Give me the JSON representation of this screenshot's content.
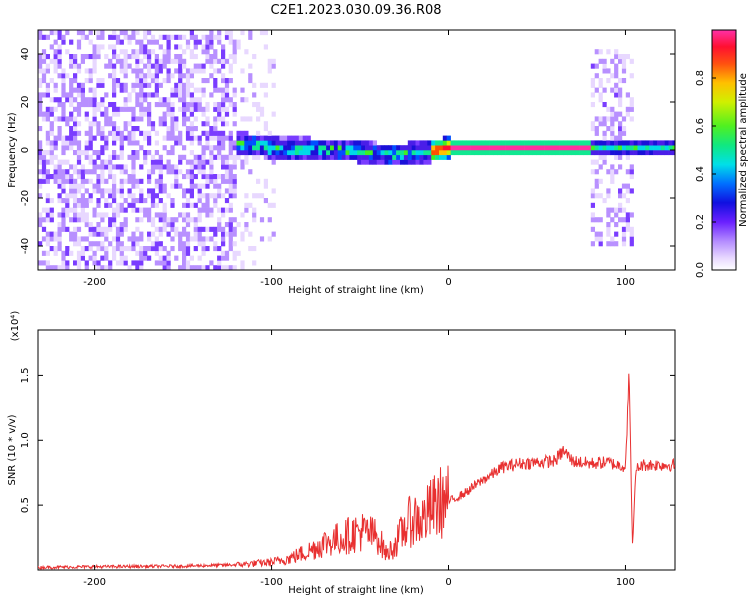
{
  "title": "C2E1.2023.030.09.36.R08",
  "colors": {
    "snr_line": "#e83030",
    "spectrum_palette": [
      "#ffffff",
      "#e8d8ff",
      "#b890ff",
      "#7a3cff",
      "#4a1ee8",
      "#1a10d8",
      "#0050ff",
      "#00d8e8",
      "#10e890",
      "#40f020",
      "#c8f000",
      "#ffc000",
      "#ff5000",
      "#ff1030",
      "#ff30a0"
    ]
  },
  "chart_data": [
    {
      "type": "heatmap",
      "xlabel": "Height of straight line (km)",
      "ylabel": "Frequency (Hz)",
      "xlim": [
        -232,
        128
      ],
      "ylim": [
        -50,
        50
      ],
      "x_ticks": [
        -200,
        -100,
        0,
        100
      ],
      "x_tick_labels": [
        "-200",
        "-100",
        "0",
        "100"
      ],
      "y_ticks": [
        -40,
        -20,
        0,
        20,
        40
      ],
      "y_tick_labels": [
        "-40",
        "-20",
        "0",
        "20",
        "40"
      ],
      "colorbar": {
        "label": "Normalized spectral amplitude",
        "range": [
          0,
          1
        ],
        "ticks": [
          0.0,
          0.2,
          0.4,
          0.6,
          0.8
        ],
        "tick_labels": [
          "0.0",
          "0.2",
          "0.4",
          "0.6",
          "0.8"
        ]
      },
      "features": {
        "broadband_noise_region_km": [
          -232,
          -120
        ],
        "sparse_noise_region_km": [
          -120,
          -100
        ],
        "carrier_ridge": {
          "x_start_km": -120,
          "x_end_km": 128,
          "freq_hz": [
            [
              -120,
              2
            ],
            [
              -100,
              0
            ],
            [
              -60,
              -1
            ],
            [
              -35,
              -3
            ],
            [
              -15,
              -2
            ],
            [
              0,
              0
            ],
            [
              80,
              0
            ],
            [
              128,
              0
            ]
          ],
          "peak_amplitude": 0.97
        },
        "broadband_burst_region_km": [
          80,
          104
        ]
      }
    },
    {
      "type": "line",
      "xlabel": "Height of straight line (km)",
      "ylabel": "SNR (10 * v/v)",
      "multiplier": "(x10⁴)",
      "xlim": [
        -232,
        128
      ],
      "ylim": [
        0,
        18500
      ],
      "x_ticks": [
        -200,
        -100,
        0,
        100
      ],
      "x_tick_labels": [
        "-200",
        "-100",
        "0",
        "100"
      ],
      "y_ticks": [
        5000,
        10000,
        15000
      ],
      "y_tick_labels": [
        "0.5",
        "1.0",
        "1.5"
      ],
      "series": [
        {
          "x": [
            -232,
            -200,
            -150,
            -120,
            -100,
            -90,
            -80,
            -70,
            -60,
            -50,
            -40,
            -35,
            -30,
            -25,
            -20,
            -15,
            -10,
            -5,
            0,
            5,
            10,
            15,
            20,
            25,
            30,
            40,
            50,
            60,
            65,
            70,
            80,
            90,
            95,
            100,
            102,
            104,
            106,
            110,
            120,
            128
          ],
          "y": [
            200,
            250,
            300,
            400,
            600,
            900,
            1400,
            2100,
            2500,
            3000,
            2600,
            1200,
            2000,
            3200,
            4000,
            3800,
            4600,
            5200,
            5300,
            5600,
            6000,
            6500,
            7000,
            7400,
            7900,
            8200,
            8300,
            8400,
            9200,
            8400,
            8200,
            8300,
            8100,
            8000,
            15000,
            2000,
            7800,
            8100,
            8100,
            8100
          ]
        }
      ]
    }
  ]
}
